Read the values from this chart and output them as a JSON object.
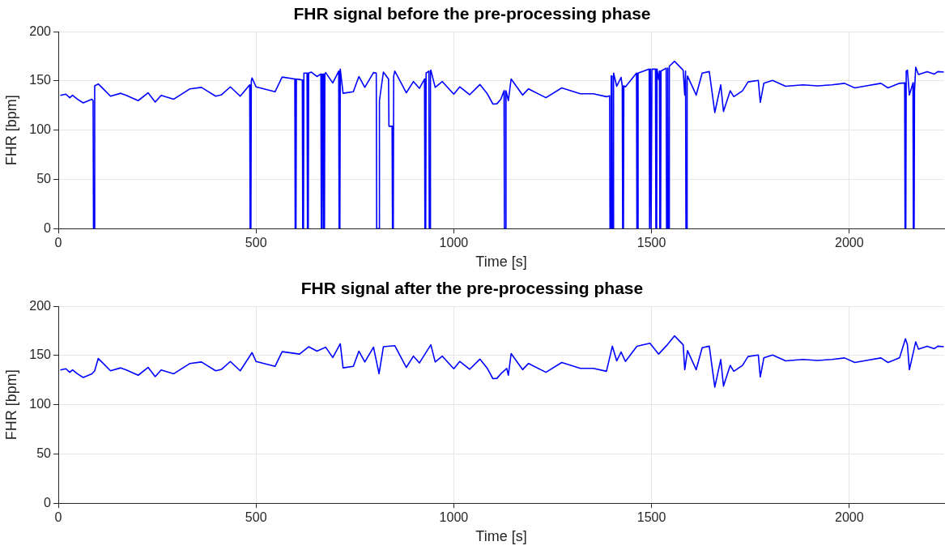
{
  "chart_data": [
    {
      "type": "line",
      "title": "FHR signal before the pre-processing phase",
      "xlabel": "Time [s]",
      "ylabel": "FHR [bpm]",
      "xlim": [
        0,
        2240
      ],
      "xticks": [
        0,
        500,
        1000,
        1500,
        2000
      ],
      "ylim": [
        0,
        200
      ],
      "yticks": [
        0,
        50,
        100,
        150,
        200
      ],
      "grid": true,
      "line_style": "solid",
      "marker": "none",
      "series": [
        {
          "color": "#0000ff",
          "x": [
            5,
            19,
            29,
            36,
            48,
            63,
            85,
            88,
            89,
            91,
            92,
            101,
            110,
            132,
            158,
            172,
            202,
            227,
            245,
            260,
            292,
            333,
            362,
            398,
            413,
            435,
            460,
            484,
            485,
            487,
            488,
            490,
            500,
            548,
            566,
            598,
            599,
            601,
            602,
            610,
            617,
            618,
            620,
            621,
            629,
            630,
            632,
            633,
            640,
            654,
            664,
            665,
            667,
            668,
            670,
            671,
            673,
            674,
            676,
            694,
            709,
            710,
            712,
            713,
            720,
            746,
            760,
            775,
            797,
            804,
            805,
            811,
            812,
            822,
            835,
            836,
            844,
            845,
            847,
            848,
            851,
            880,
            898,
            913,
            926,
            927,
            929,
            930,
            937,
            938,
            940,
            941,
            942,
            953,
            971,
            1000,
            1015,
            1040,
            1066,
            1084,
            1099,
            1109,
            1119,
            1127,
            1128,
            1131,
            1132,
            1134,
            1138,
            1145,
            1174,
            1189,
            1233,
            1273,
            1320,
            1353,
            1386,
            1394,
            1395,
            1397,
            1398,
            1400,
            1401,
            1403,
            1404,
            1412,
            1423,
            1426,
            1427,
            1429,
            1430,
            1434,
            1462,
            1463,
            1465,
            1466,
            1494,
            1495,
            1496,
            1497,
            1498,
            1499,
            1500,
            1501,
            1510,
            1511,
            1513,
            1514,
            1518,
            1520,
            1521,
            1523,
            1524,
            1537,
            1538,
            1540,
            1541,
            1542,
            1544,
            1545,
            1558,
            1580,
            1584,
            1586,
            1587,
            1589,
            1590,
            1591,
            1613,
            1628,
            1646,
            1660,
            1675,
            1682,
            1699,
            1708,
            1730,
            1744,
            1770,
            1775,
            1784,
            1806,
            1839,
            1883,
            1919,
            1956,
            1988,
            2014,
            2043,
            2080,
            2098,
            2127,
            2140,
            2141,
            2143,
            2144,
            2147,
            2152,
            2161,
            2162,
            2164,
            2165,
            2168,
            2175,
            2197,
            2215,
            2224,
            2239
          ],
          "values": [
            135.4,
            136.6,
            133,
            135.4,
            131.5,
            127.7,
            131.5,
            130,
            0,
            0,
            145,
            147,
            143.5,
            134.5,
            137.5,
            135.4,
            130,
            138,
            128.6,
            135.4,
            131.5,
            142,
            143.5,
            134.5,
            136,
            144,
            134.5,
            146,
            0,
            0,
            150,
            153,
            144,
            139,
            154,
            152,
            0,
            0,
            152,
            151.5,
            151,
            0,
            0,
            158,
            158,
            0,
            0,
            158,
            159,
            154.5,
            157,
            0,
            0,
            157,
            157,
            0,
            0,
            157,
            158.5,
            148,
            160,
            0,
            0,
            162,
            137.5,
            139,
            154.5,
            143.5,
            158.5,
            158,
            0,
            0,
            130,
            159,
            152,
            104,
            104,
            0,
            0,
            155,
            160,
            138,
            149.4,
            142.5,
            152,
            0,
            0,
            158,
            160,
            0,
            0,
            160,
            161,
            143.5,
            149.4,
            136.6,
            144,
            136,
            146.4,
            137.5,
            126.5,
            126.8,
            131.5,
            140,
            0,
            0,
            140,
            137,
            130,
            152,
            135.7,
            142,
            133,
            143,
            137,
            137,
            134,
            135,
            0,
            0,
            155,
            155,
            0,
            0,
            158,
            144.6,
            153.6,
            145,
            0,
            0,
            145,
            144,
            158,
            0,
            0,
            158,
            162,
            0,
            0,
            162,
            162,
            0,
            0,
            162,
            162,
            0,
            0,
            162,
            151.5,
            160,
            0,
            0,
            160,
            163,
            0,
            0,
            163,
            0,
            0,
            165,
            170,
            161,
            135.7,
            160,
            0,
            0,
            150,
            155,
            135.7,
            158,
            159.5,
            117.9,
            146,
            119,
            140,
            134,
            140,
            149,
            150.6,
            128.3,
            147.6,
            150.6,
            144.6,
            146,
            145,
            146,
            147.6,
            143,
            145,
            147.6,
            143,
            147.6,
            148,
            0,
            0,
            160,
            161,
            135.7,
            148,
            0,
            0,
            140,
            164,
            156.5,
            159.5,
            157,
            159.5,
            159
          ]
        }
      ]
    },
    {
      "type": "line",
      "title": "FHR signal after the pre-processing phase",
      "xlabel": "Time [s]",
      "ylabel": "FHR [bpm]",
      "xlim": [
        0,
        2240
      ],
      "xticks": [
        0,
        500,
        1000,
        1500,
        2000
      ],
      "ylim": [
        0,
        200
      ],
      "yticks": [
        0,
        50,
        100,
        150,
        200
      ],
      "grid": true,
      "line_style": "solid",
      "marker": "none",
      "series": [
        {
          "color": "#0000ff",
          "x": [
            5,
            19,
            29,
            36,
            48,
            63,
            85,
            92,
            101,
            110,
            132,
            158,
            172,
            202,
            227,
            245,
            260,
            292,
            333,
            362,
            398,
            413,
            435,
            460,
            490,
            500,
            548,
            566,
            610,
            633,
            654,
            676,
            694,
            713,
            720,
            746,
            760,
            775,
            797,
            811,
            822,
            851,
            880,
            898,
            913,
            942,
            953,
            971,
            1000,
            1015,
            1040,
            1066,
            1084,
            1099,
            1109,
            1119,
            1134,
            1138,
            1145,
            1174,
            1189,
            1233,
            1273,
            1320,
            1353,
            1386,
            1401,
            1412,
            1423,
            1434,
            1463,
            1496,
            1518,
            1540,
            1558,
            1580,
            1584,
            1591,
            1613,
            1628,
            1646,
            1660,
            1675,
            1682,
            1699,
            1708,
            1730,
            1744,
            1770,
            1775,
            1784,
            1806,
            1839,
            1883,
            1919,
            1956,
            1988,
            2014,
            2043,
            2080,
            2098,
            2127,
            2142,
            2147,
            2152,
            2168,
            2175,
            2197,
            2215,
            2224,
            2239
          ],
          "values": [
            135.4,
            136.6,
            133,
            135.4,
            131.5,
            127.7,
            131.5,
            134.5,
            147,
            143.5,
            134.5,
            137.5,
            135.4,
            130,
            138,
            128.6,
            135.4,
            131.5,
            142,
            143.5,
            134.5,
            136,
            144,
            134.5,
            153,
            144,
            139,
            154,
            151.5,
            159,
            154.5,
            158.5,
            148,
            162,
            137.5,
            139,
            154.5,
            143.5,
            158.5,
            131.5,
            159,
            160,
            138,
            149.4,
            142.5,
            161,
            143.5,
            149.4,
            136.6,
            144,
            136,
            146.4,
            137.5,
            126.5,
            126.8,
            131.5,
            137,
            130,
            152,
            135.7,
            142,
            133,
            143,
            137,
            137,
            134,
            159.5,
            144.6,
            153.6,
            144,
            159.5,
            162.5,
            151.5,
            161,
            170,
            161,
            135.7,
            155,
            135.7,
            158,
            159.5,
            117.9,
            146,
            119,
            140,
            134,
            140,
            149,
            150.6,
            128.3,
            147.6,
            150.6,
            144.6,
            146,
            145,
            146,
            147.6,
            143,
            145,
            147.6,
            143,
            147.6,
            167,
            161,
            135.7,
            164,
            156.5,
            159.5,
            157,
            159.5,
            159
          ]
        }
      ]
    }
  ]
}
